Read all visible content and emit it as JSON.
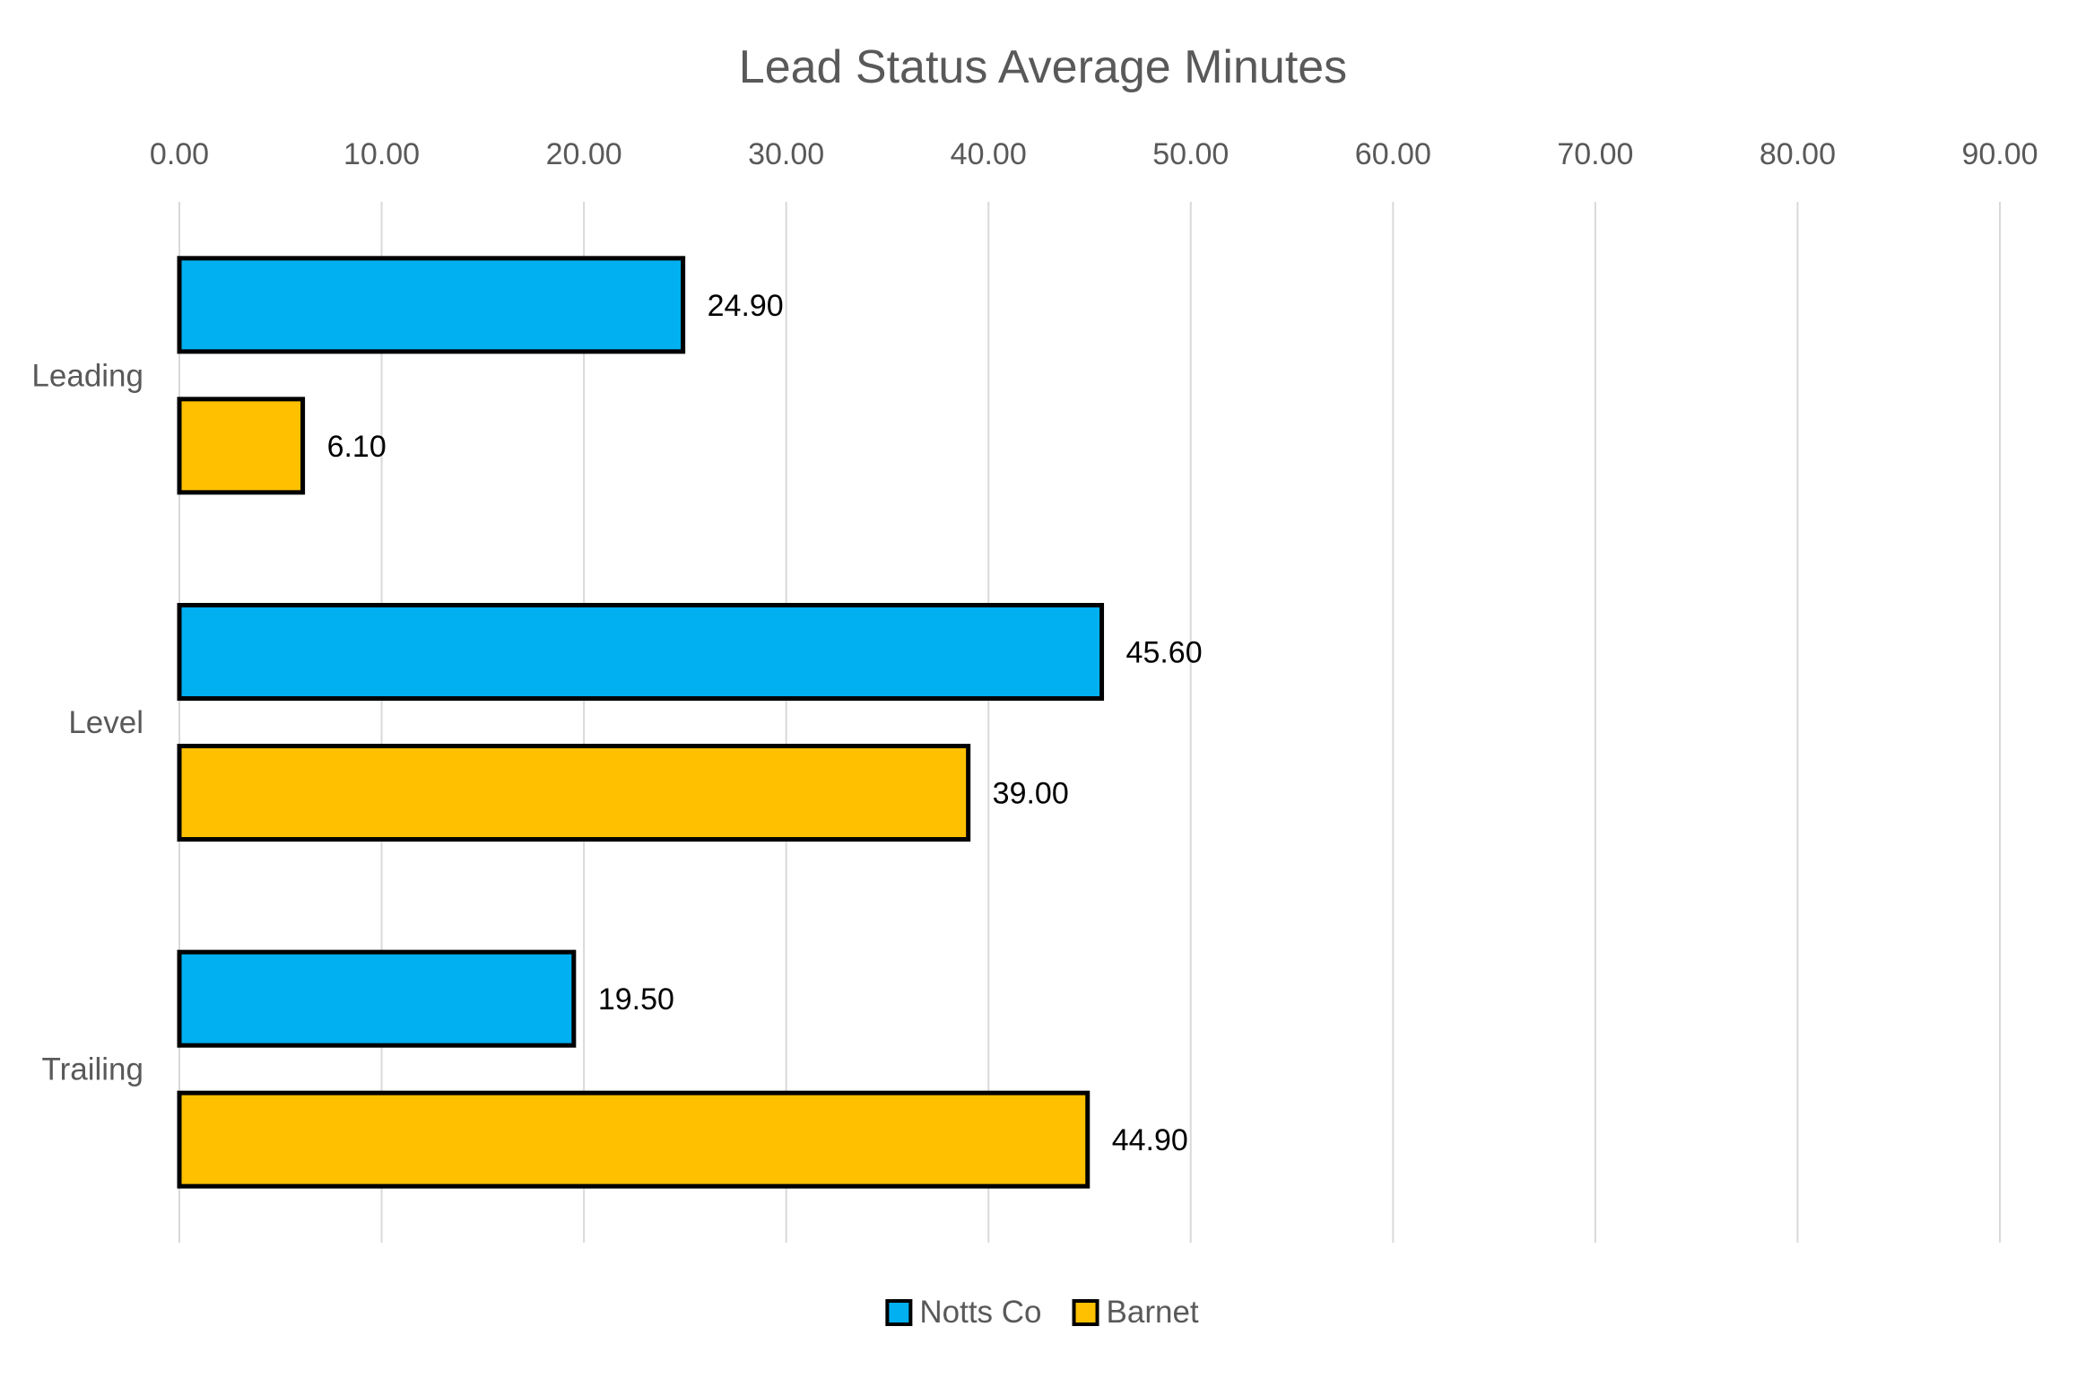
{
  "chart_data": {
    "type": "bar",
    "orientation": "horizontal",
    "title": "Lead Status Average Minutes",
    "categories": [
      "Leading",
      "Level",
      "Trailing"
    ],
    "series": [
      {
        "name": "Notts Co",
        "values": [
          24.9,
          45.6,
          19.5
        ],
        "color": "#00b0f0",
        "value_labels": [
          "24.90",
          "45.60",
          "19.50"
        ]
      },
      {
        "name": "Barnet",
        "values": [
          6.1,
          39.0,
          44.9
        ],
        "color": "#ffc000",
        "value_labels": [
          "6.10",
          "39.00",
          "44.90"
        ]
      }
    ],
    "xlim": [
      0,
      90
    ],
    "x_ticks": [
      "0.00",
      "10.00",
      "20.00",
      "30.00",
      "40.00",
      "50.00",
      "60.00",
      "70.00",
      "80.00",
      "90.00"
    ],
    "x_axis_position": "top",
    "grid": true,
    "legend_position": "bottom",
    "bar_outline_color": "#000000"
  }
}
